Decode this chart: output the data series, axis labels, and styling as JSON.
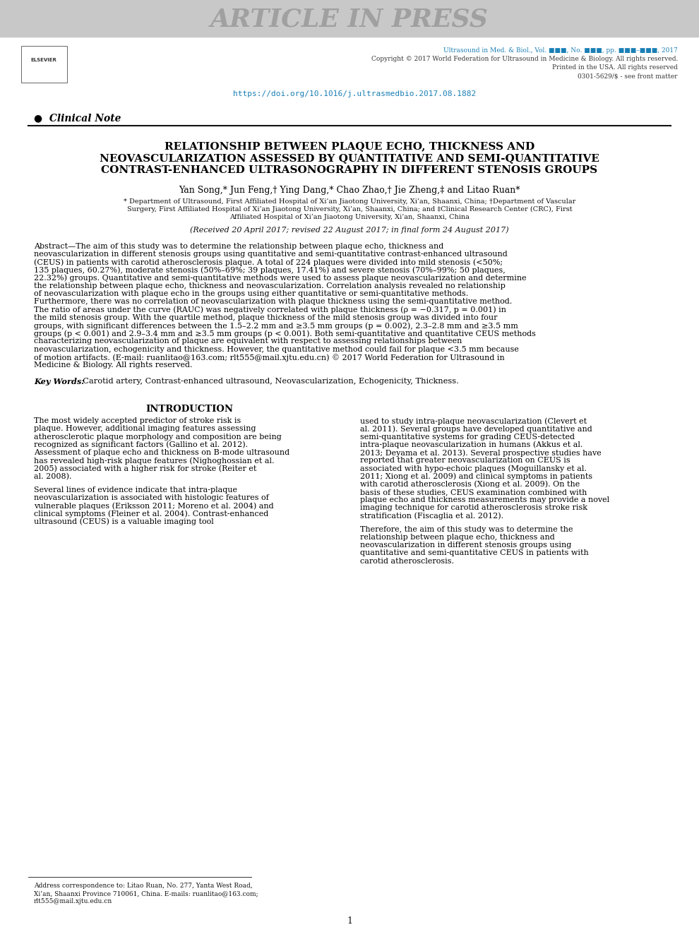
{
  "page_bg": "#ffffff",
  "header_bg": "#c8c8c8",
  "header_text": "ARTICLE IN PRESS",
  "header_text_color": "#a0a0a0",
  "journal_line1": "Ultrasound in Med. & Biol., Vol. ■■■, No. ■■■, pp. ■■■–■■■, 2017",
  "journal_line2": "Copyright © 2017 World Federation for Ultrasound in Medicine & Biology. All rights reserved.",
  "journal_line3": "Printed in the USA. All rights reserved",
  "journal_line4": "0301-5629/$ - see front matter",
  "doi_text": "https://doi.org/10.1016/j.ultrasmedbio.2017.08.1882",
  "teal_color": "#1a7fb5",
  "section_label": "●  Clinical Note",
  "title_line1": "RELATIONSHIP BETWEEN PLAQUE ECHO, THICKNESS AND",
  "title_line2": "NEOVASCULARIZATION ASSESSED BY QUANTITATIVE AND SEMI-QUANTITATIVE",
  "title_line3": "CONTRAST-ENHANCED ULTRASONOGRAPHY IN DIFFERENT STENOSIS GROUPS",
  "authors": "Yan Song,* Jun Feng,† Ying Dang,* Chao Zhao,† Jie Zheng,‡ and Litao Ruan*",
  "affiliation1": "* Department of Ultrasound, First Affiliated Hospital of Xi’an Jiaotong University, Xi’an, Shaanxi, China; †Department of Vascular",
  "affiliation2": "Surgery, First Affiliated Hospital of Xi’an Jiaotong University, Xi’an, Shaanxi, China; and ‡Clinical Research Center (CRC), First",
  "affiliation3": "Affiliated Hospital of Xi’an Jiaotong University, Xi’an, Shaanxi, China",
  "received": "(Received 20 April 2017; revised 22 August 2017; in final form 24 August 2017)",
  "abstract_label": "Abstract—",
  "abstract_text": "The aim of this study was to determine the relationship between plaque echo, thickness and neovascularization in different stenosis groups using quantitative and semi-quantitative contrast-enhanced ultrasound (CEUS) in patients with carotid atherosclerosis plaque. A total of 224 plaques were divided into mild stenosis (<50%; 135 plaques, 60.27%), moderate stenosis (50%–69%; 39 plaques, 17.41%) and severe stenosis (70%–99%; 50 plaques, 22.32%) groups. Quantitative and semi-quantitative methods were used to assess plaque neovascularization and determine the relationship between plaque echo, thickness and neovascularization. Correlation analysis revealed no relationship of neovascularization with plaque echo in the groups using either quantitative or semi-quantitative methods. Furthermore, there was no correlation of neovascularization with plaque thickness using the semi-quantitative method. The ratio of areas under the curve (RAUC) was negatively correlated with plaque thickness (ρ = −0.317, p = 0.001) in the mild stenosis group. With the quartile method, plaque thickness of the mild stenosis group was divided into four groups, with significant differences between the 1.5–2.2 mm and ≥3.5 mm groups (p = 0.002), 2.3–2.8 mm and ≥3.5 mm groups (p < 0.001) and 2.9–3.4 mm and ≥3.5 mm groups (p < 0.001). Both semi-quantitative and quantitative CEUS methods characterizing neovascularization of plaque are equivalent with respect to assessing relationships between neovascularization, echogenicity and thickness. However, the quantitative method could fail for plaque <3.5 mm because of motion artifacts. (E-mail: ruanlitao@163.com; rlt555@mail.xjtu.edu.cn)   © 2017 World Federation for Ultrasound in Medicine & Biology. All rights reserved.",
  "email1": "ruanlitao@163.com",
  "email2": "rlt555@mail.xjtu.edu.cn",
  "keywords_label": "Key Words:",
  "keywords_text": "  Carotid artery, Contrast-enhanced ultrasound, Neovascularization, Echogenicity, Thickness.",
  "intro_heading": "INTRODUCTION",
  "intro_col1_para1": "The most widely accepted predictor of stroke risk is plaque. However, additional imaging features assessing atherosclerotic plaque morphology and composition are being recognized as significant factors (Gallino et al. 2012). Assessment of plaque echo and thickness on B-mode ultrasound has revealed high-risk plaque features (Nighoghossian et al. 2005) associated with a higher risk for stroke (Reiter et al. 2008).",
  "intro_col1_para2": "Several lines of evidence indicate that intra-plaque neovascularization is associated with histologic features of vulnerable plaques (Eriksson 2011; Moreno et al. 2004) and clinical symptoms (Fleiner et al. 2004). Contrast-enhanced ultrasound (CEUS) is a valuable imaging tool",
  "intro_col2_para1": "used to study intra-plaque neovascularization (Clevert et al. 2011). Several groups have developed quantitative and semi-quantitative systems for grading CEUS-detected intra-plaque neovascularization in humans (Akkus et al. 2013; Deyama et al. 2013). Several prospective studies have reported that greater neovascularization on CEUS is associated with hypo-echoic plaques (Moguillansky et al. 2011; Xiong et al. 2009) and clinical symptoms in patients with carotid atherosclerosis (Xiong et al. 2009). On the basis of these studies, CEUS examination combined with plaque echo and thickness measurements may provide a novel imaging technique for carotid atherosclerosis stroke risk stratification (Fiscaglia et al. 2012).",
  "intro_col2_para2": "Therefore, the aim of this study was to determine the relationship between plaque echo, thickness and neovascularization in different stenosis groups using quantitative and semi-quantitative CEUS in patients with carotid atherosclerosis.",
  "footer_address_line1": "Address correspondence to: Litao Ruan, No. 277, Yanta West Road,",
  "footer_address_line2": "Xi’an, Shaanxi Province 710061, China. E-mails: ruanlitao@163.com;",
  "footer_address_line3": "rlt555@mail.xjtu.edu.cn",
  "footer_email1": "ruanlitao@163.com",
  "footer_email2": "rlt555@mail.xjtu.edu.cn",
  "page_number": "1",
  "elsevier_text": "ELSEVIER"
}
